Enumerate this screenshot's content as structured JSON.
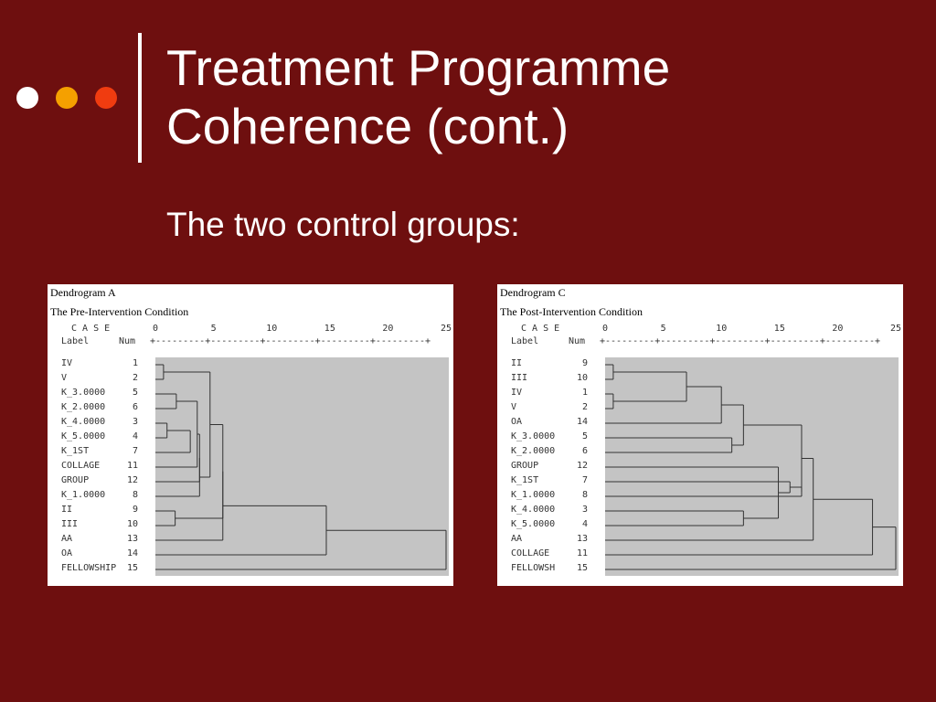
{
  "slide": {
    "title_line1": "Treatment Programme",
    "title_line2": "Coherence (cont.)",
    "subtitle": "The two control groups:",
    "dots": [
      "#ffffff",
      "#f5a000",
      "#f03c10"
    ]
  },
  "colors": {
    "background": "#6e0f0f",
    "text": "#ffffff",
    "cluster_fill": "#c4c4c4",
    "line": "#333333"
  },
  "chart_data": [
    {
      "type": "dendrogram",
      "name": "Dendrogram A",
      "subtitle": "The Pre-Intervention Condition",
      "case_header": "C A S E",
      "label_header": "Label",
      "num_header": "Num",
      "axis_ticks": [
        "0",
        "5",
        "10",
        "15",
        "20",
        "25"
      ],
      "axis_rule": "+---------+---------+---------+---------+---------+",
      "xlim": [
        0,
        25
      ],
      "leaves": [
        {
          "label": "IV",
          "num": "1"
        },
        {
          "label": "V",
          "num": "2"
        },
        {
          "label": "K_3.0000",
          "num": "5"
        },
        {
          "label": "K_2.0000",
          "num": "6"
        },
        {
          "label": "K_4.0000",
          "num": "3"
        },
        {
          "label": "K_5.0000",
          "num": "4"
        },
        {
          "label": "K_1ST",
          "num": "7"
        },
        {
          "label": "COLLAGE",
          "num": "11"
        },
        {
          "label": "GROUP",
          "num": "12"
        },
        {
          "label": "K_1.0000",
          "num": "8"
        },
        {
          "label": "II",
          "num": "9"
        },
        {
          "label": "III",
          "num": "10"
        },
        {
          "label": "AA",
          "num": "13"
        },
        {
          "label": "OA",
          "num": "14"
        },
        {
          "label": "FELLOWSHIP",
          "num": "15"
        }
      ],
      "merges": [
        {
          "a": 0,
          "b": 1,
          "height": 0.7
        },
        {
          "a": 4,
          "b": 5,
          "height": 1.0
        },
        {
          "a": 10,
          "b": 11,
          "height": 1.7
        },
        {
          "a": 2,
          "b": 3,
          "height": 1.8
        },
        {
          "a": 16,
          "b": 6,
          "height": 3.0
        },
        {
          "a": 18,
          "b": 7,
          "height": 3.6
        },
        {
          "a": 20,
          "b": 8,
          "height": 3.8
        },
        {
          "a": 21,
          "b": 9,
          "height": 3.8
        },
        {
          "a": 15,
          "b": 22,
          "height": 4.7
        },
        {
          "a": 23,
          "b": 17,
          "height": 5.8
        },
        {
          "a": 24,
          "b": 12,
          "height": 5.8
        },
        {
          "a": 25,
          "b": 13,
          "height": 14.7
        },
        {
          "a": 26,
          "b": 14,
          "height": 25
        }
      ]
    },
    {
      "type": "dendrogram",
      "name": "Dendrogram C",
      "subtitle": "The Post-Intervention Condition",
      "case_header": "C A S E",
      "label_header": "Label",
      "num_header": "Num",
      "axis_ticks": [
        "0",
        "5",
        "10",
        "15",
        "20",
        "25"
      ],
      "axis_rule": "+---------+---------+---------+---------+---------+",
      "xlim": [
        0,
        25
      ],
      "leaves": [
        {
          "label": "II",
          "num": "9"
        },
        {
          "label": "III",
          "num": "10"
        },
        {
          "label": "IV",
          "num": "1"
        },
        {
          "label": "V",
          "num": "2"
        },
        {
          "label": "OA",
          "num": "14"
        },
        {
          "label": "K_3.0000",
          "num": "5"
        },
        {
          "label": "K_2.0000",
          "num": "6"
        },
        {
          "label": "GROUP",
          "num": "12"
        },
        {
          "label": "K_1ST",
          "num": "7"
        },
        {
          "label": "K_1.0000",
          "num": "8"
        },
        {
          "label": "K_4.0000",
          "num": "3"
        },
        {
          "label": "K_5.0000",
          "num": "4"
        },
        {
          "label": "AA",
          "num": "13"
        },
        {
          "label": "COLLAGE",
          "num": "11"
        },
        {
          "label": "FELLOWSH",
          "num": "15"
        }
      ],
      "merges": [
        {
          "a": 0,
          "b": 1,
          "height": 0.7
        },
        {
          "a": 2,
          "b": 3,
          "height": 0.7
        },
        {
          "a": 15,
          "b": 16,
          "height": 7.0
        },
        {
          "a": 17,
          "b": 4,
          "height": 10.0
        },
        {
          "a": 5,
          "b": 6,
          "height": 10.9
        },
        {
          "a": 10,
          "b": 11,
          "height": 11.9
        },
        {
          "a": 18,
          "b": 19,
          "height": 11.9
        },
        {
          "a": 20,
          "b": 7,
          "height": 14.9
        },
        {
          "a": 22,
          "b": 8,
          "height": 15.9
        },
        {
          "a": 23,
          "b": 9,
          "height": 16.9
        },
        {
          "a": 24,
          "b": 21,
          "height": 16.9
        },
        {
          "a": 25,
          "b": 12,
          "height": 17.9
        },
        {
          "a": 26,
          "b": 13,
          "height": 23.0
        },
        {
          "a": 27,
          "b": 14,
          "height": 25
        }
      ]
    }
  ]
}
